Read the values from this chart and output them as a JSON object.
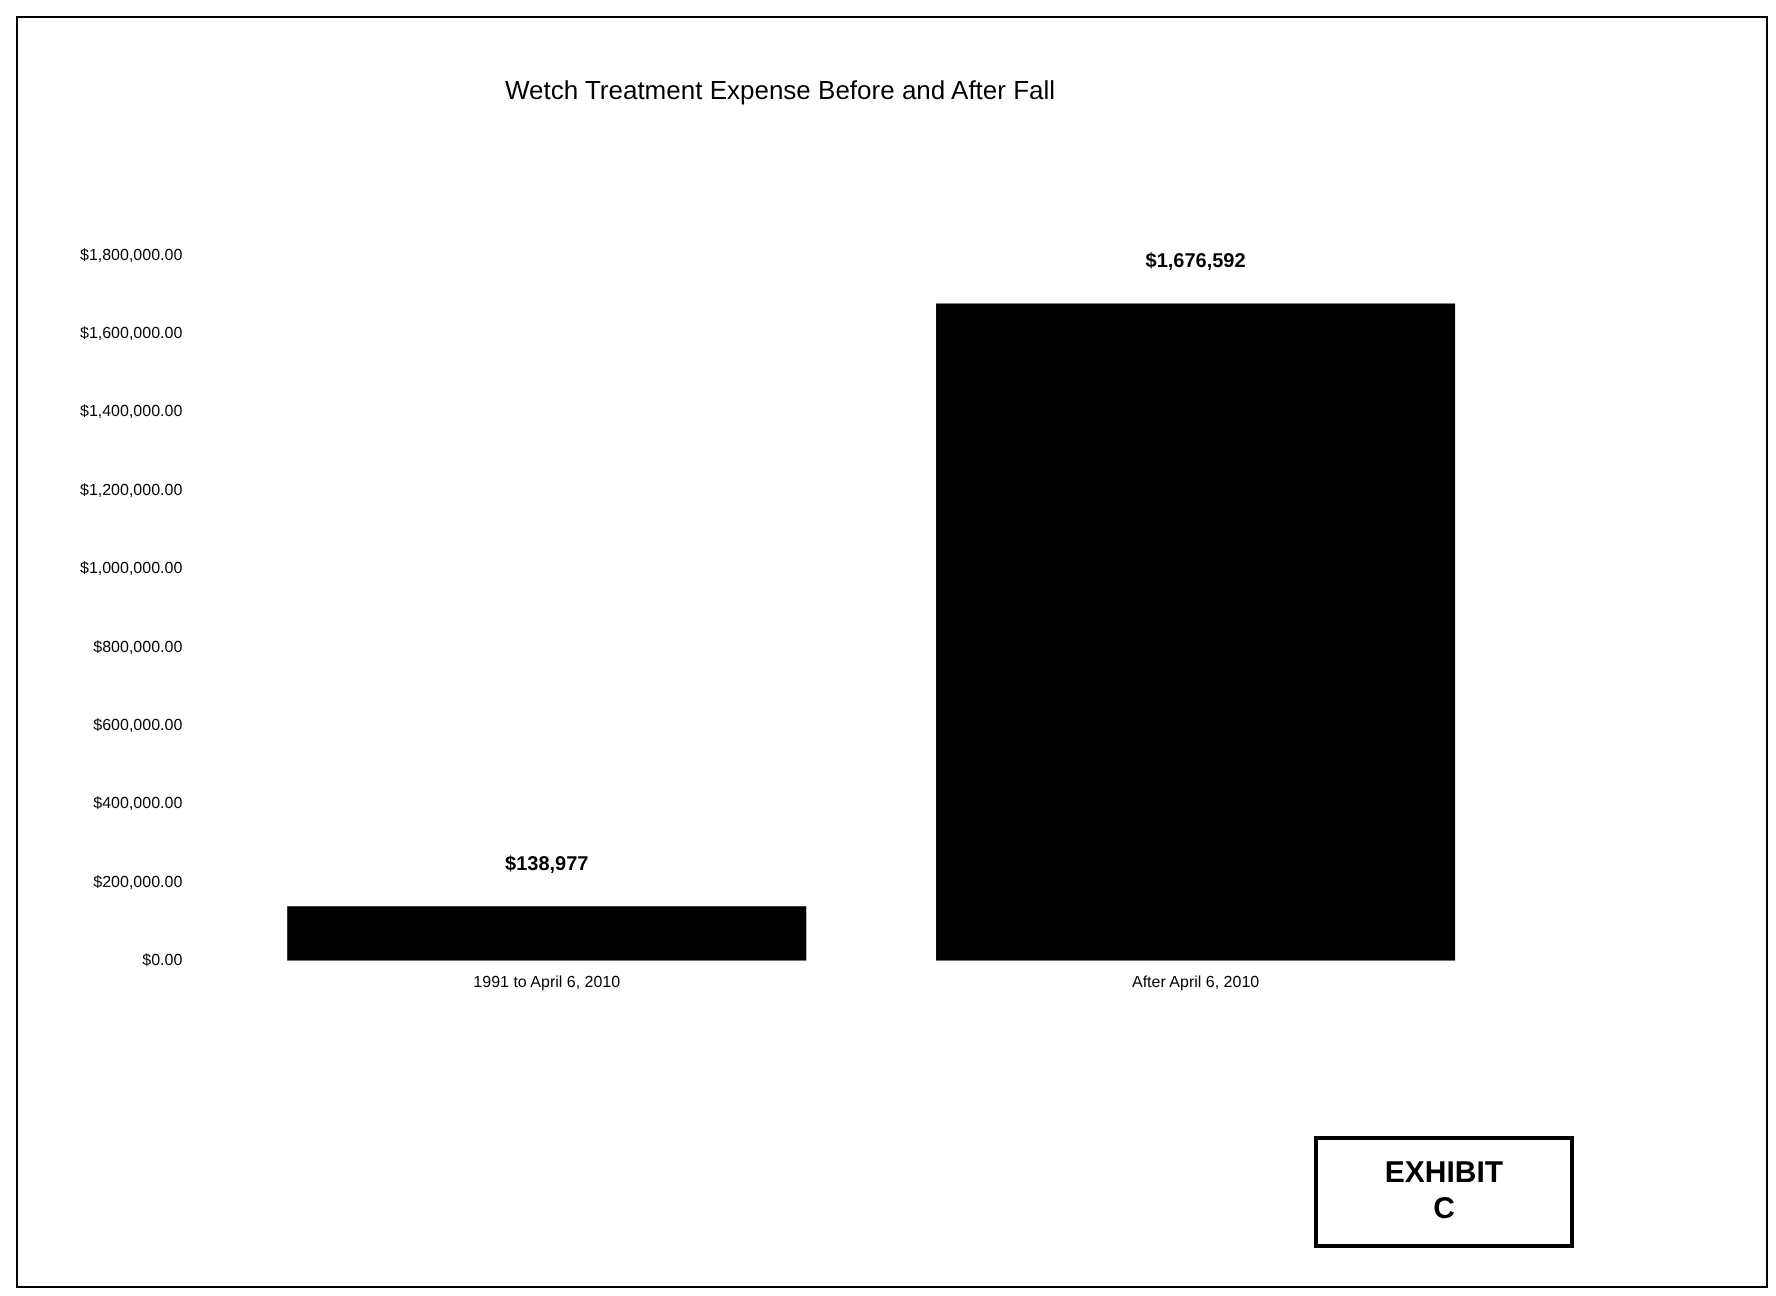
{
  "chart_data": {
    "type": "bar",
    "title": "Wetch Treatment Expense Before and After Fall",
    "categories": [
      "1991 to April 6, 2010",
      "After April 6, 2010"
    ],
    "values": [
      138977,
      1676592
    ],
    "color": "#000000",
    "value_labels": [
      "$138,977",
      "$1,676,592"
    ],
    "ylim": [
      0,
      1800000
    ],
    "yticks": [
      {
        "value": 0,
        "label": "$0.00"
      },
      {
        "value": 200000,
        "label": "$200,000.00"
      },
      {
        "value": 400000,
        "label": "$400,000.00"
      },
      {
        "value": 600000,
        "label": "$600,000.00"
      },
      {
        "value": 800000,
        "label": "$800,000.00"
      },
      {
        "value": 1000000,
        "label": "$1,000,000.00"
      },
      {
        "value": 1200000,
        "label": "$1,200,000.00"
      },
      {
        "value": 1400000,
        "label": "$1,400,000.00"
      },
      {
        "value": 1600000,
        "label": "$1,600,000.00"
      },
      {
        "value": 1800000,
        "label": "$1,800,000.00"
      }
    ],
    "grid": false,
    "legend": false,
    "annotations": [
      "EXHIBIT C"
    ]
  }
}
